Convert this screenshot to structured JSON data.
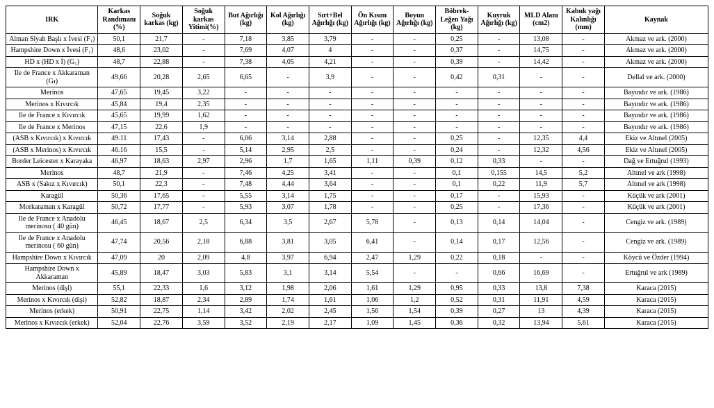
{
  "headers": [
    "IRK",
    "Karkas Randımanı (%)",
    "Soğuk karkas (kg)",
    "Soğuk karkas Yitimi(%)",
    "But Ağırlığı (kg)",
    "Kol Ağırlığı (kg)",
    "Sırt+Bel Ağırlığı (kg)",
    "Ön Kısım Ağırlığı (kg)",
    "Boyun Ağırlığı (kg)",
    "Böbrek-Leğen Yağı (kg)",
    "Kuyruk Ağırlığı (kg)",
    "MLD Alanı (cm2)",
    "Kabuk yağı Kalınlığı (mm)",
    "Kaynak"
  ],
  "rows": [
    {
      "irk": "Alman Siyah Başlı x İvesi (F₁)",
      "v": [
        "50,1",
        "21,7",
        "-",
        "7,18",
        "3,85",
        "3,79",
        "-",
        "-",
        "0,25",
        "-",
        "13,08",
        "-"
      ],
      "src": "Akmaz ve ark. (2000)"
    },
    {
      "irk": "Hampshire Down x İvesi (F₁)",
      "v": [
        "48,6",
        "23,02",
        "-",
        "7,69",
        "4,07",
        "4",
        "-",
        "-",
        "0,37",
        "-",
        "14,75",
        "-"
      ],
      "src": "Akmaz ve ark. (2000)"
    },
    {
      "irk": "HD x (HD x İ) (G₁)",
      "v": [
        "48,7",
        "22,88",
        "-",
        "7,38",
        "4,05",
        "4,21",
        "-",
        "-",
        "0,39",
        "-",
        "14,42",
        "-"
      ],
      "src": "Akmaz ve ark. (2000)"
    },
    {
      "irk": "Ile de France x Akkaraman (Gı)",
      "v": [
        "49,66",
        "20,28",
        "2,65",
        "6,65",
        "-",
        "3,9",
        "-",
        "-",
        "0,42",
        "0,31",
        "-",
        "-"
      ],
      "src": "Dellal ve ark. (2000)"
    },
    {
      "irk": "Merinos",
      "v": [
        "47,65",
        "19,45",
        "3,22",
        "-",
        "-",
        "-",
        "-",
        "-",
        "-",
        "-",
        "-",
        "-"
      ],
      "src": "Bayındır ve ark. (1986)"
    },
    {
      "irk": "Merinos x Kıvırcık",
      "v": [
        "45,84",
        "19,4",
        "2,35",
        "-",
        "-",
        "-",
        "-",
        "-",
        "-",
        "-",
        "-",
        "-"
      ],
      "src": "Bayındır ve ark. (1986)"
    },
    {
      "irk": "Ile de France x Kıvırcık",
      "v": [
        "45,65",
        "19,99",
        "1,62",
        "-",
        "-",
        "-",
        "-",
        "-",
        "-",
        "-",
        "-",
        "-"
      ],
      "src": "Bayındır ve ark. (1986)"
    },
    {
      "irk": "Ile de France x Merinos",
      "v": [
        "47,15",
        "22,6",
        "1,9",
        "-",
        "-",
        "-",
        "-",
        "-",
        "-",
        "-",
        "-",
        "-"
      ],
      "src": "Bayındır ve ark. (1986)"
    },
    {
      "irk": "(ASB x Kıvırcık) x Kıvırcık",
      "v": [
        "49.11",
        "17,43",
        "-",
        "6,06",
        "3,14",
        "2,88",
        "-",
        "-",
        "0,25",
        "-",
        "12,35",
        "4,4"
      ],
      "src": "Ekiz ve Altınel (2005)"
    },
    {
      "irk": "(ASB x Merinos) x Kıvırcık",
      "v": [
        "46.16",
        "15,5",
        "-",
        "5,14",
        "2,95",
        "2,5",
        "-",
        "-",
        "0,24",
        "-",
        "12,32",
        "4,56"
      ],
      "src": "Ekiz ve Altınel (2005)"
    },
    {
      "irk": "Border Leicester x Karayaka",
      "v": [
        "46,97",
        "18,63",
        "2,97",
        "2,96",
        "1,7",
        "1,65",
        "1,11",
        "0,39",
        "0,12",
        "0,33",
        "-",
        "-"
      ],
      "src": "Dağ ve Ertuğrul (1993)"
    },
    {
      "irk": "Merinos",
      "v": [
        "48,7",
        "21,9",
        "-",
        "7,46",
        "4,25",
        "3,41",
        "-",
        "-",
        "0,1",
        "0,155",
        "14,5",
        "5,2"
      ],
      "src": "Altınel ve ark (1998)"
    },
    {
      "irk": "ASB x (Sakız x Kıvırcık)",
      "v": [
        "50,1",
        "22,3",
        "-",
        "7,48",
        "4,44",
        "3,64",
        "-",
        "-",
        "0,1",
        "0,22",
        "11,9",
        "5,7"
      ],
      "src": "Altınel ve ark (1998)"
    },
    {
      "irk": "Karagül",
      "v": [
        "50,36",
        "17,65",
        "-",
        "5,55",
        "3,14",
        "1,75",
        "-",
        "-",
        "0,17",
        "-",
        "15,93",
        "-"
      ],
      "src": "Küçük ve ark (2001)"
    },
    {
      "irk": "Morkaraman x Karagül",
      "v": [
        "50,72",
        "17,77",
        "-",
        "5,93",
        "3,07",
        "1,78",
        "-",
        "-",
        "0,25",
        "-",
        "17,36",
        "-"
      ],
      "src": "Küçük ve ark (2001)"
    },
    {
      "irk": "Ile de France x Anadolu merinosu ( 40 gün)",
      "v": [
        "46,45",
        "18,67",
        "2,5",
        "6,34",
        "3,5",
        "2,67",
        "5,78",
        "-",
        "0,13",
        "0,14",
        "14,04",
        "-"
      ],
      "src": "Cengiz ve ark. (1989)"
    },
    {
      "irk": "Ile de France x Anadolu merinosu ( 60 gün)",
      "v": [
        "47,74",
        "20,56",
        "2,18",
        "6,88",
        "3,81",
        "3,05",
        "6,41",
        "-",
        "0,14",
        "0,17",
        "12,56",
        "-"
      ],
      "src": "Cengiz ve ark. (1989)"
    },
    {
      "irk": "Hampshire Down x Kıvırcık",
      "v": [
        "47,09",
        "20",
        "2,09",
        "4,8",
        "3,97",
        "6,94",
        "2,47",
        "1,29",
        "0,22",
        "0,18",
        "-",
        "-"
      ],
      "src": "Köycü ve Özder (1994)"
    },
    {
      "irk": "Hampshire Down x Akkaraman",
      "v": [
        "45,89",
        "18,47",
        "3,03",
        "5,83",
        "3,1",
        "3,14",
        "5,54",
        "-",
        "-",
        "0,66",
        "16,69",
        "-"
      ],
      "src": "Ertuğrul ve ark (1989)"
    },
    {
      "irk": "Merinos (dişi)",
      "v": [
        "55,1",
        "22,33",
        "1,6",
        "3,12",
        "1,98",
        "2,06",
        "1,61",
        "1,29",
        "0,95",
        "0,33",
        "13,8",
        "7,38"
      ],
      "src": "Karaca (2015)"
    },
    {
      "irk": "Merinos x Kıvırcık (dişi)",
      "v": [
        "52,82",
        "18,87",
        "2,34",
        "2,89",
        "1,74",
        "1,61",
        "1,06",
        "1,2",
        "0,52",
        "0,31",
        "11,91",
        "4,59"
      ],
      "src": "Karaca (2015)"
    },
    {
      "irk": "Merinos (erkek)",
      "v": [
        "50,91",
        "22,75",
        "1,14",
        "3,42",
        "2,02",
        "2,45",
        "1,56",
        "1,54",
        "0,39",
        "0,27",
        "13",
        "4,39"
      ],
      "src": "Karaca (2015)"
    },
    {
      "irk": "Merinos x Kıvırcık (erkek)",
      "v": [
        "52,04",
        "22,76",
        "3,59",
        "3,52",
        "2,19",
        "2,17",
        "1,09",
        "1,45",
        "0,36",
        "0,32",
        "13,94",
        "5,61"
      ],
      "src": "Karaca (2015)"
    }
  ],
  "style": {
    "background_color": "#ffffff",
    "text_color": "#000000",
    "border_color": "#000000",
    "font_family": "Times New Roman",
    "font_size": 10,
    "header_font_weight": "bold"
  }
}
